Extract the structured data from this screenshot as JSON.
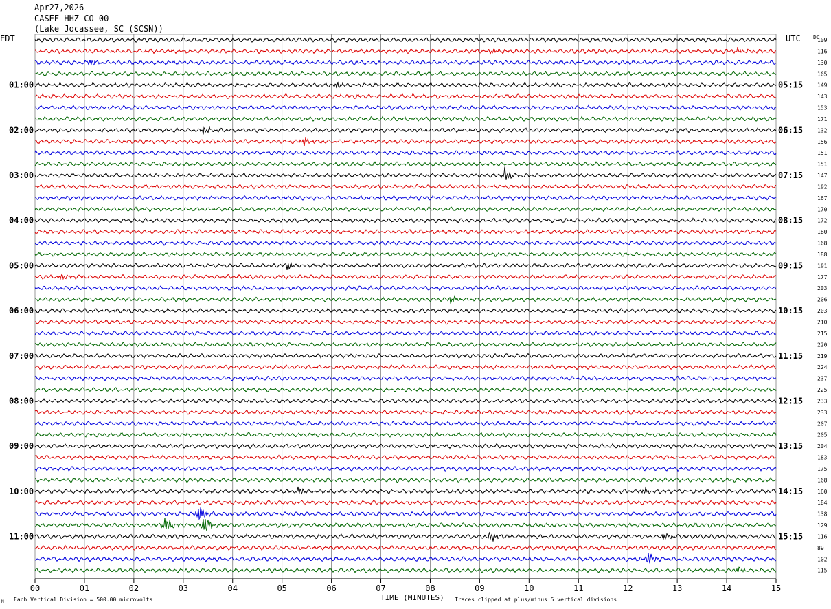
{
  "header": {
    "date": "Apr27,2026",
    "station": "CASEE HHZ CO 00",
    "location": "(Lake Jocassee, SC (SCSN))",
    "left_tz": "EDT",
    "right_tz": "UTC",
    "dc_label": "DC"
  },
  "footer": {
    "scale_note": "Each Vertical Division =  500.00 microvolts",
    "clip_note": "Traces clipped at plus/minus 5 vertical divisions",
    "corner_mark": "M"
  },
  "colors": {
    "trace_cycle": [
      "#000000",
      "#dd0000",
      "#0000dd",
      "#006600"
    ],
    "grid": "#808080",
    "axis": "#000000"
  },
  "chart_data": {
    "type": "line",
    "title": "CASEE HHZ CO 00",
    "xlabel": "TIME (MINUTES)",
    "ylabel": "",
    "x_ticks": [
      "00",
      "01",
      "02",
      "03",
      "04",
      "05",
      "06",
      "07",
      "08",
      "09",
      "10",
      "11",
      "12",
      "13",
      "14",
      "15"
    ],
    "xlim": [
      0,
      15
    ],
    "minutes_per_line": 15,
    "left_hour_labels": [
      "01:00",
      "02:00",
      "03:00",
      "04:00",
      "05:00",
      "06:00",
      "07:00",
      "08:00",
      "09:00",
      "10:00",
      "11:00"
    ],
    "right_hour_labels": [
      "05:15",
      "06:15",
      "07:15",
      "08:15",
      "09:15",
      "10:15",
      "11:15",
      "12:15",
      "13:15",
      "14:15",
      "15:15"
    ],
    "dc_offsets": [
      109,
      116,
      130,
      165,
      149,
      143,
      153,
      171,
      132,
      156,
      151,
      151,
      147,
      192,
      167,
      170,
      172,
      180,
      168,
      188,
      191,
      177,
      203,
      206,
      203,
      210,
      215,
      220,
      219,
      224,
      237,
      225,
      233,
      233,
      207,
      205,
      204,
      183,
      175,
      168,
      160,
      184,
      138,
      129,
      116,
      89,
      102,
      115
    ],
    "events": [
      {
        "line": 2,
        "minute": 1.1,
        "amplitude": 1.6
      },
      {
        "line": 1,
        "minute": 9.2,
        "amplitude": 1.4
      },
      {
        "line": 1,
        "minute": 14.2,
        "amplitude": 1.4
      },
      {
        "line": 4,
        "minute": 6.1,
        "amplitude": 1.5
      },
      {
        "line": 8,
        "minute": 3.4,
        "amplitude": 1.8
      },
      {
        "line": 9,
        "minute": 5.4,
        "amplitude": 2.4
      },
      {
        "line": 12,
        "minute": 9.5,
        "amplitude": 2.6
      },
      {
        "line": 20,
        "minute": 5.1,
        "amplitude": 1.8
      },
      {
        "line": 21,
        "minute": 0.5,
        "amplitude": 1.5
      },
      {
        "line": 23,
        "minute": 8.4,
        "amplitude": 1.6
      },
      {
        "line": 40,
        "minute": 5.3,
        "amplitude": 1.8
      },
      {
        "line": 40,
        "minute": 12.3,
        "amplitude": 1.6
      },
      {
        "line": 42,
        "minute": 3.3,
        "amplitude": 4.5
      },
      {
        "line": 43,
        "minute": 2.6,
        "amplitude": 3.6
      },
      {
        "line": 43,
        "minute": 3.4,
        "amplitude": 4.2
      },
      {
        "line": 44,
        "minute": 9.2,
        "amplitude": 2.6
      },
      {
        "line": 44,
        "minute": 12.7,
        "amplitude": 1.6
      },
      {
        "line": 46,
        "minute": 12.4,
        "amplitude": 3.0
      },
      {
        "line": 47,
        "minute": 14.2,
        "amplitude": 1.4
      }
    ]
  }
}
